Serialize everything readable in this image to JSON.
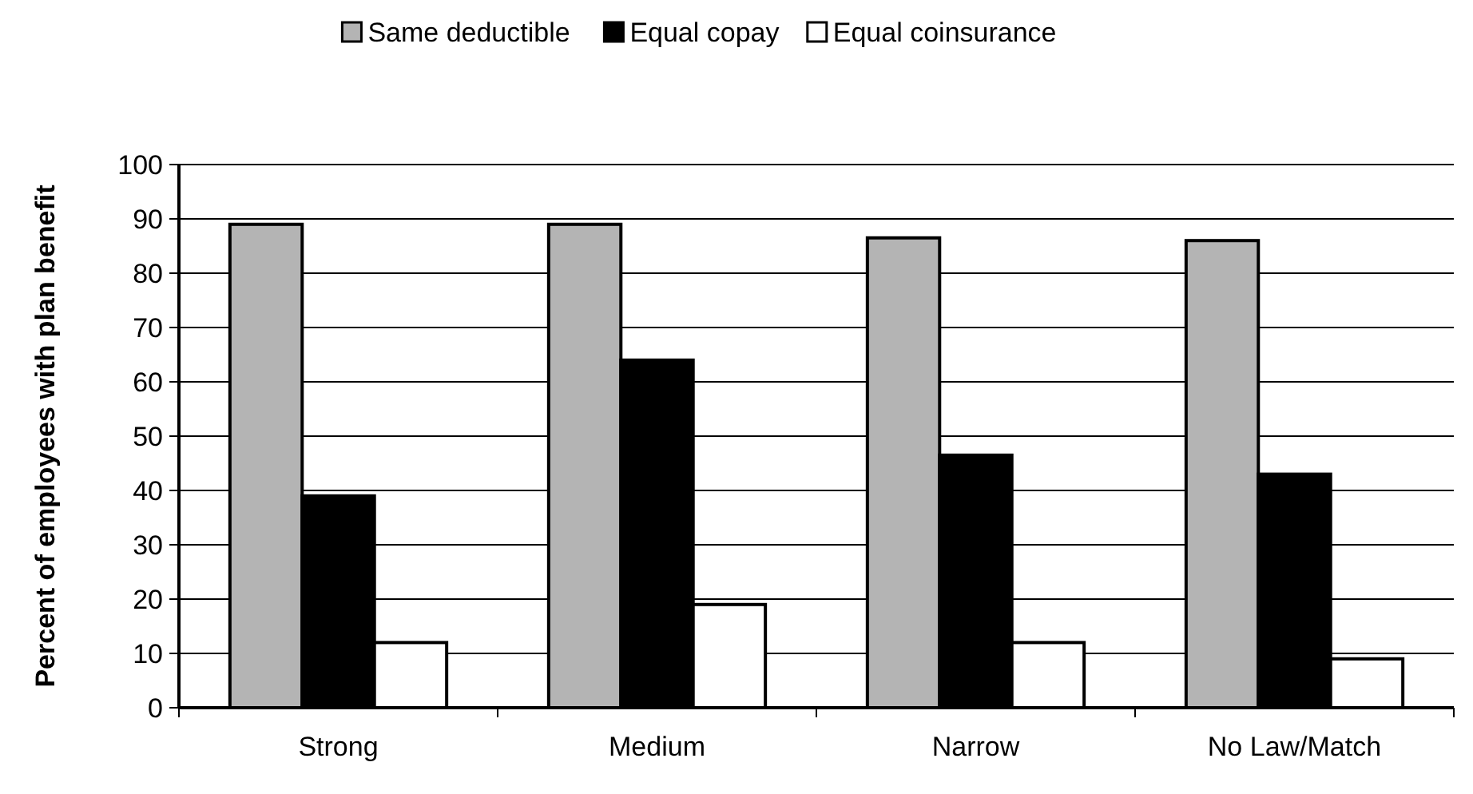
{
  "chart_data": {
    "type": "bar",
    "ylabel": "Percent of employees with plan benefit",
    "categories": [
      "Strong",
      "Medium",
      "Narrow",
      "No Law/Match"
    ],
    "series": [
      {
        "name": "Same deductible",
        "color": "#b4b4b4",
        "values": [
          89,
          89,
          86.5,
          86
        ]
      },
      {
        "name": "Equal copay",
        "color": "#000000",
        "values": [
          39,
          64,
          46.5,
          43
        ]
      },
      {
        "name": "Equal coinsurance",
        "color": "#ffffff",
        "values": [
          12,
          19,
          12,
          9
        ]
      }
    ],
    "ylim": [
      0,
      100
    ],
    "yticks": [
      0,
      10,
      20,
      30,
      40,
      50,
      60,
      70,
      80,
      90,
      100
    ],
    "grid": "y",
    "legend": "top"
  }
}
